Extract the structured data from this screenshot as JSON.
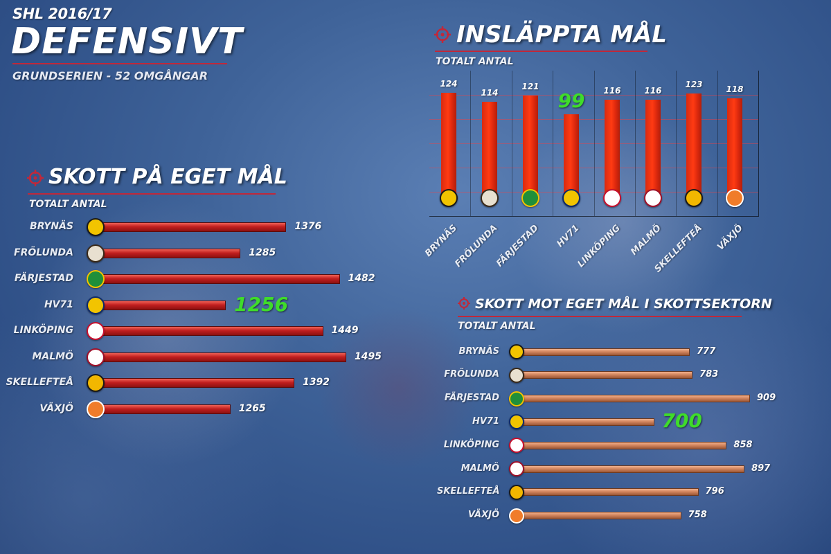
{
  "header": {
    "league": "SHL 2016/17",
    "title": "DEFENSIVT",
    "subtitle": "GRUNDSERIEN - 52 OMGÅNGAR"
  },
  "colors": {
    "accent_red": "#c0283a",
    "highlight_green": "#3fdc2a",
    "bar_red": "#c11f1f",
    "bar_copper": "#d2855e",
    "bar_vertical": "#ff3b12"
  },
  "teams": [
    {
      "name": "BRYNÄS",
      "logo": "brynas-logo",
      "color": "#f2c400",
      "ring": "#1a1a1a"
    },
    {
      "name": "FRÖLUNDA",
      "logo": "frolunda-logo",
      "color": "#e8e0d0",
      "ring": "#3a2a1a"
    },
    {
      "name": "FÄRJESTAD",
      "logo": "farjestad-logo",
      "color": "#1f8f3a",
      "ring": "#f2c400"
    },
    {
      "name": "HV71",
      "logo": "hv71-logo",
      "color": "#f2c400",
      "ring": "#0d2a6b"
    },
    {
      "name": "LINKÖPING",
      "logo": "linkoping-logo",
      "color": "#ffffff",
      "ring": "#c8102e"
    },
    {
      "name": "MALMÖ",
      "logo": "malmo-logo",
      "color": "#ffffff",
      "ring": "#a0102a"
    },
    {
      "name": "SKELLEFTEÅ",
      "logo": "skelleftea-logo",
      "color": "#f2b700",
      "ring": "#1a1a1a"
    },
    {
      "name": "VÄXJÖ",
      "logo": "vaxjo-logo",
      "color": "#f07c2a",
      "ring": "#ffffff"
    }
  ],
  "chart_data": [
    {
      "type": "bar",
      "orientation": "horizontal",
      "title": "SKOTT PÅ EGET MÅL",
      "subtitle": "TOTALT ANTAL",
      "categories": [
        "BRYNÄS",
        "FRÖLUNDA",
        "FÄRJESTAD",
        "HV71",
        "LINKÖPING",
        "MALMÖ",
        "SKELLEFTEÅ",
        "VÄXJÖ"
      ],
      "values": [
        1376,
        1285,
        1482,
        1256,
        1449,
        1495,
        1392,
        1265
      ],
      "labels": [
        "1376",
        "1285",
        "1482",
        "1256",
        "1449",
        "1495",
        "1392",
        "1265"
      ],
      "highlight": "HV71"
    },
    {
      "type": "bar",
      "orientation": "vertical",
      "title": "INSLÄPPTA MÅL",
      "subtitle": "TOTALT ANTAL",
      "categories": [
        "BRYNÄS",
        "FRÖLUNDA",
        "FÄRJESTAD",
        "HV71",
        "LINKÖPING",
        "MALMÖ",
        "SKELLEFTEÅ",
        "VÄXJÖ"
      ],
      "values": [
        124,
        114,
        121,
        99,
        116,
        116,
        123,
        118
      ],
      "labels": [
        "124",
        "114",
        "121",
        "99",
        "116",
        "116",
        "123",
        "118"
      ],
      "highlight": "HV71",
      "grid": true
    },
    {
      "type": "bar",
      "orientation": "horizontal",
      "title": "SKOTT MOT EGET MÅL I SKOTTSEKTORN",
      "subtitle": "TOTALT ANTAL",
      "categories": [
        "BRYNÄS",
        "FRÖLUNDA",
        "FÄRJESTAD",
        "HV71",
        "LINKÖPING",
        "MALMÖ",
        "SKELLEFTEÅ",
        "VÄXJÖ"
      ],
      "values": [
        777,
        783,
        909,
        700,
        858,
        897,
        796,
        758
      ],
      "labels": [
        "777",
        "783",
        "909",
        "700",
        "858",
        "897",
        "796",
        "758"
      ],
      "highlight": "HV71"
    }
  ]
}
